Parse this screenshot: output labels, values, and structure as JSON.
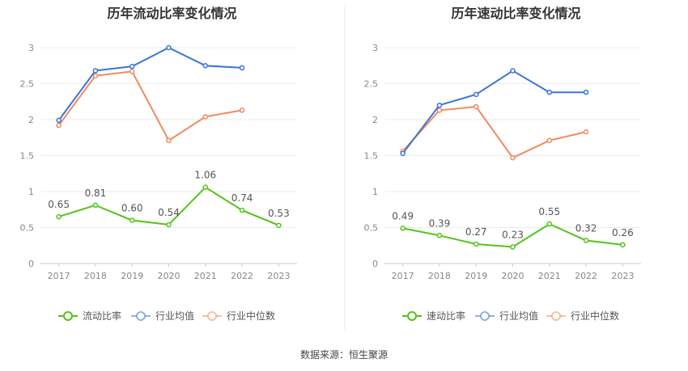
{
  "colors": {
    "primary": "#52c41a",
    "avg": "#3b73dc",
    "median": "#f08a5d",
    "axis": "#cccccc",
    "grid": "#ebebeb",
    "tick": "#888888",
    "label": "#555555"
  },
  "source": "数据来源：恒生聚源",
  "chart_data": [
    {
      "type": "line",
      "title": "历年流动比率变化情况",
      "categories": [
        "2017",
        "2018",
        "2019",
        "2020",
        "2021",
        "2022",
        "2023"
      ],
      "ylim": [
        0,
        3
      ],
      "yticks": [
        0,
        0.5,
        1,
        1.5,
        2,
        2.5,
        3
      ],
      "ytick_labels": [
        "0",
        "0.5",
        "1",
        "1.5",
        "2",
        "2.5",
        "3"
      ],
      "grid": true,
      "legend_position": "bottom",
      "series": [
        {
          "name": "流动比率",
          "color": "#52c41a",
          "values": [
            0.65,
            0.81,
            0.6,
            0.54,
            1.06,
            0.74,
            0.53
          ],
          "labels": [
            "0.65",
            "0.81",
            "0.60",
            "0.54",
            "1.06",
            "0.74",
            "0.53"
          ]
        },
        {
          "name": "行业均值",
          "color": "#3b73dc",
          "values": [
            1.99,
            2.68,
            2.74,
            3.0,
            2.75,
            2.72,
            null
          ]
        },
        {
          "name": "行业中位数",
          "color": "#f08a5d",
          "values": [
            1.92,
            2.61,
            2.67,
            1.71,
            2.04,
            2.13,
            null
          ]
        }
      ]
    },
    {
      "type": "line",
      "title": "历年速动比率变化情况",
      "categories": [
        "2017",
        "2018",
        "2019",
        "2020",
        "2021",
        "2022",
        "2023"
      ],
      "ylim": [
        0,
        3
      ],
      "yticks": [
        0,
        0.5,
        1,
        1.5,
        2,
        2.5,
        3
      ],
      "ytick_labels": [
        "0",
        "0.5",
        "1",
        "1.5",
        "2",
        "2.5",
        "3"
      ],
      "grid": true,
      "legend_position": "bottom",
      "series": [
        {
          "name": "速动比率",
          "color": "#52c41a",
          "values": [
            0.49,
            0.39,
            0.27,
            0.23,
            0.55,
            0.32,
            0.26
          ],
          "labels": [
            "0.49",
            "0.39",
            "0.27",
            "0.23",
            "0.55",
            "0.32",
            "0.26"
          ]
        },
        {
          "name": "行业均值",
          "color": "#3b73dc",
          "values": [
            1.53,
            2.2,
            2.35,
            2.68,
            2.38,
            2.38,
            null
          ]
        },
        {
          "name": "行业中位数",
          "color": "#f08a5d",
          "values": [
            1.56,
            2.13,
            2.18,
            1.47,
            1.71,
            1.83,
            null
          ]
        }
      ]
    }
  ]
}
